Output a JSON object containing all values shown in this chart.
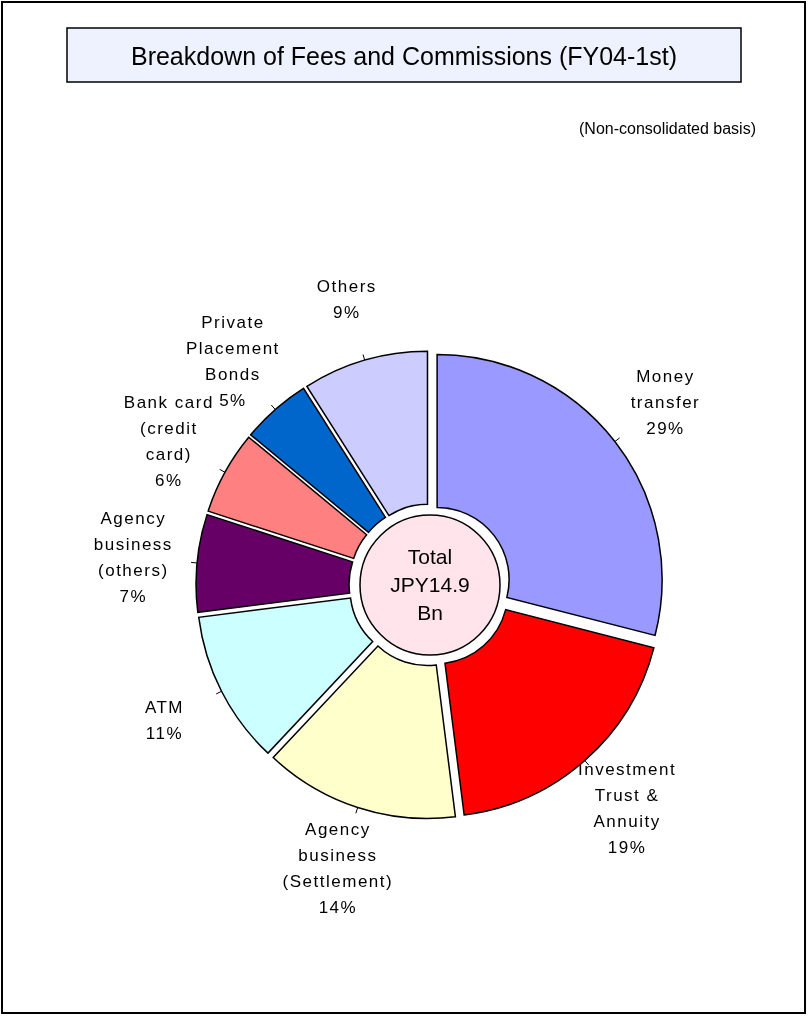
{
  "chart_data": {
    "type": "donut",
    "title": "Breakdown of Fees and Commissions (FY04-1st)",
    "subtitle": "(Non-consolidated basis)",
    "categories": [
      "Money transfer",
      "Investment Trust & Annuity",
      "Agency business (Settlement)",
      "ATM",
      "Agency business (others)",
      "Bank card (credit card)",
      "Private Placement Bonds",
      "Others"
    ],
    "values": [
      29,
      19,
      14,
      11,
      7,
      6,
      5,
      9
    ],
    "colors": [
      "#9999ff",
      "#ff0000",
      "#ffffcc",
      "#ccffff",
      "#660066",
      "#ff8080",
      "#0066cc",
      "#ccccff"
    ],
    "value_labels": [
      "29%",
      "19%",
      "14%",
      "11%",
      "7%",
      "6%",
      "5%",
      "9%"
    ],
    "annotations": [
      "Total JPY14.9 Bn"
    ]
  }
}
